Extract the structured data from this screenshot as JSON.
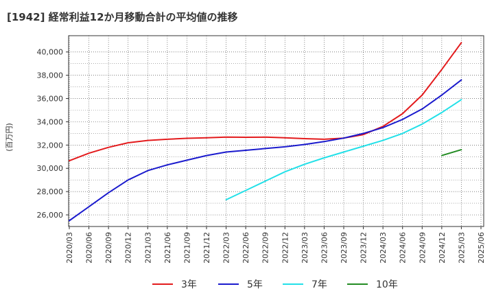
{
  "chart_data": {
    "type": "line",
    "title": "[1942]  経常利益12か月移動合計の平均値の推移",
    "ylabel": "(百万円)",
    "xlabel": "",
    "ylim": [
      25000,
      41400
    ],
    "yticks": [
      26000,
      28000,
      30000,
      32000,
      34000,
      36000,
      38000,
      40000
    ],
    "ytick_labels": [
      "26,000",
      "28,000",
      "30,000",
      "32,000",
      "34,000",
      "36,000",
      "38,000",
      "40,000"
    ],
    "xticks": [
      "2020/03",
      "2020/06",
      "2020/09",
      "2020/12",
      "2021/03",
      "2021/06",
      "2021/09",
      "2021/12",
      "2022/03",
      "2022/06",
      "2022/09",
      "2022/12",
      "2023/03",
      "2023/06",
      "2023/09",
      "2023/12",
      "2024/03",
      "2024/06",
      "2024/09",
      "2024/12",
      "2025/03",
      "2025/06"
    ],
    "grid": true,
    "legend_position": "bottom",
    "series": [
      {
        "name": "3年",
        "color": "#e31a1c",
        "points": [
          [
            "2020/03",
            30650
          ],
          [
            "2020/06",
            31300
          ],
          [
            "2020/09",
            31800
          ],
          [
            "2020/12",
            32200
          ],
          [
            "2021/03",
            32400
          ],
          [
            "2021/06",
            32500
          ],
          [
            "2021/09",
            32580
          ],
          [
            "2021/12",
            32620
          ],
          [
            "2022/03",
            32680
          ],
          [
            "2022/06",
            32670
          ],
          [
            "2022/09",
            32680
          ],
          [
            "2022/12",
            32620
          ],
          [
            "2023/03",
            32550
          ],
          [
            "2023/06",
            32500
          ],
          [
            "2023/09",
            32600
          ],
          [
            "2023/12",
            32900
          ],
          [
            "2024/03",
            33600
          ],
          [
            "2024/06",
            34700
          ],
          [
            "2024/09",
            36300
          ],
          [
            "2024/12",
            38500
          ],
          [
            "2025/03",
            40800
          ]
        ]
      },
      {
        "name": "5年",
        "color": "#1a1acd",
        "points": [
          [
            "2020/03",
            25500
          ],
          [
            "2020/06",
            26700
          ],
          [
            "2020/09",
            27900
          ],
          [
            "2020/12",
            29000
          ],
          [
            "2021/03",
            29800
          ],
          [
            "2021/06",
            30300
          ],
          [
            "2021/09",
            30700
          ],
          [
            "2021/12",
            31100
          ],
          [
            "2022/03",
            31400
          ],
          [
            "2022/06",
            31550
          ],
          [
            "2022/09",
            31700
          ],
          [
            "2022/12",
            31850
          ],
          [
            "2023/03",
            32050
          ],
          [
            "2023/06",
            32300
          ],
          [
            "2023/09",
            32600
          ],
          [
            "2023/12",
            33000
          ],
          [
            "2024/03",
            33500
          ],
          [
            "2024/06",
            34200
          ],
          [
            "2024/09",
            35100
          ],
          [
            "2024/12",
            36300
          ],
          [
            "2025/03",
            37600
          ]
        ]
      },
      {
        "name": "7年",
        "color": "#22e0e8",
        "points": [
          [
            "2022/03",
            27300
          ],
          [
            "2022/06",
            28100
          ],
          [
            "2022/09",
            28900
          ],
          [
            "2022/12",
            29700
          ],
          [
            "2023/03",
            30350
          ],
          [
            "2023/06",
            30900
          ],
          [
            "2023/09",
            31400
          ],
          [
            "2023/12",
            31900
          ],
          [
            "2024/03",
            32400
          ],
          [
            "2024/06",
            33000
          ],
          [
            "2024/09",
            33800
          ],
          [
            "2024/12",
            34800
          ],
          [
            "2025/03",
            35900
          ]
        ]
      },
      {
        "name": "10年",
        "color": "#228b22",
        "points": [
          [
            "2024/12",
            31100
          ],
          [
            "2025/03",
            31600
          ]
        ]
      }
    ]
  }
}
